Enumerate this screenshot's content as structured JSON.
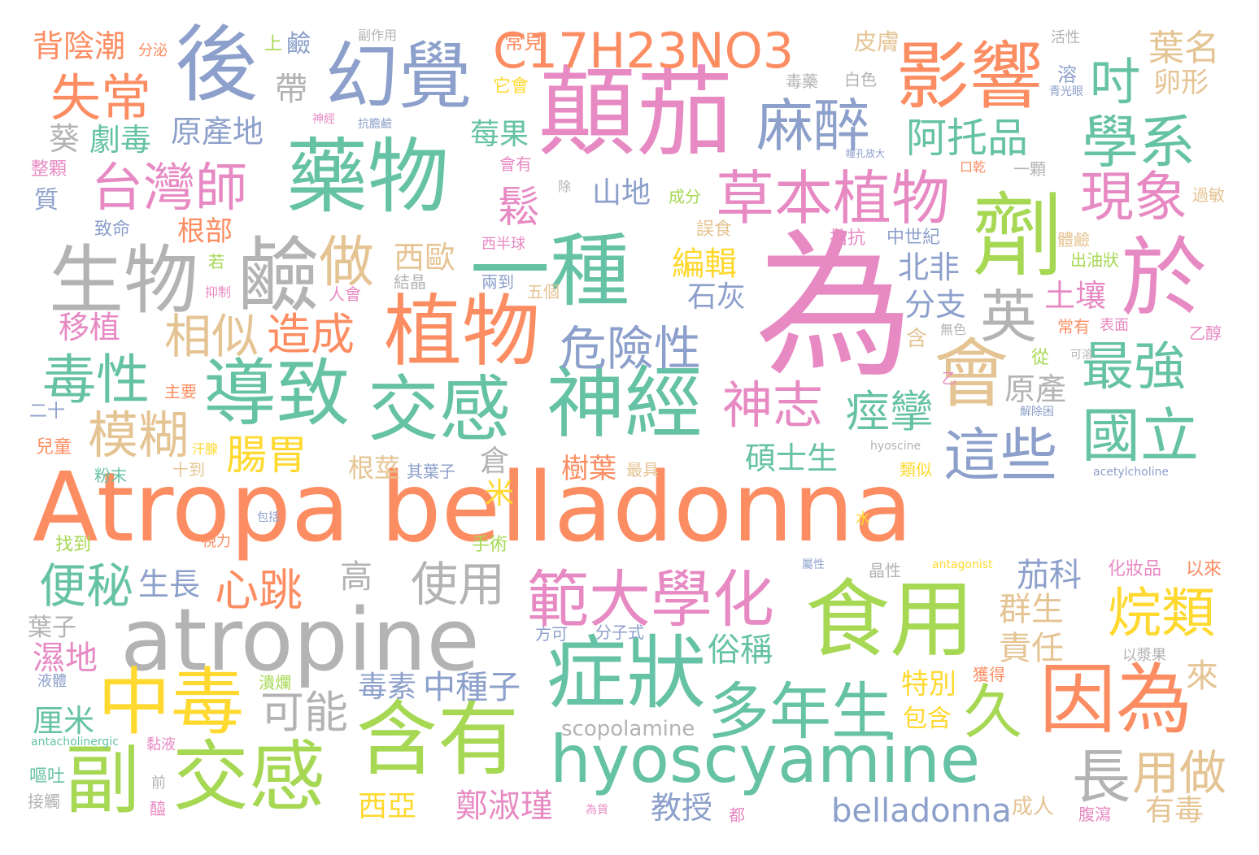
{
  "words": [
    {
      "text": "Atropa belladonna",
      "color": "#fc8d62"
    },
    {
      "text": "為",
      "color": "#e78ac3"
    },
    {
      "text": "atropine",
      "color": "#b3b3b3"
    },
    {
      "text": "顛茄",
      "color": "#e78ac3"
    },
    {
      "text": "藥物",
      "color": "#66c2a5"
    },
    {
      "text": "一種",
      "color": "#66c2a5"
    },
    {
      "text": "植物",
      "color": "#fc8d62"
    },
    {
      "text": "食用",
      "color": "#a6d854"
    },
    {
      "text": "hyoscyamine",
      "color": "#66c2a5"
    },
    {
      "text": "含有",
      "color": "#a6d854"
    },
    {
      "text": "劑",
      "color": "#a6d854"
    },
    {
      "text": "於",
      "color": "#e78ac3"
    },
    {
      "text": "後",
      "color": "#8da0cb"
    },
    {
      "text": "幻覺",
      "color": "#8da0cb"
    },
    {
      "text": "影響",
      "color": "#fc8d62"
    },
    {
      "text": "C17H23NO3",
      "color": "#fc8d62"
    },
    {
      "text": "生物",
      "color": "#b3b3b3"
    },
    {
      "text": "鹼",
      "color": "#b3b3b3"
    },
    {
      "text": "導致",
      "color": "#66c2a5"
    },
    {
      "text": "交感",
      "color": "#66c2a5"
    },
    {
      "text": "神經",
      "color": "#66c2a5"
    },
    {
      "text": "症狀",
      "color": "#66c2a5"
    },
    {
      "text": "中毒",
      "color": "#ffd92f"
    },
    {
      "text": "交感",
      "color": "#a6d854"
    },
    {
      "text": "副",
      "color": "#a6d854"
    },
    {
      "text": "因為",
      "color": "#fc8d62"
    },
    {
      "text": "會",
      "color": "#e5c494"
    },
    {
      "text": "草本植物",
      "color": "#e78ac3"
    },
    {
      "text": "範大學化",
      "color": "#e78ac3"
    },
    {
      "text": "多年生",
      "color": "#66c2a5"
    },
    {
      "text": "台灣師",
      "color": "#e78ac3"
    },
    {
      "text": "失常",
      "color": "#fc8d62"
    },
    {
      "text": "麻醉",
      "color": "#8da0cb"
    },
    {
      "text": "學系",
      "color": "#66c2a5"
    },
    {
      "text": "現象",
      "color": "#e78ac3"
    },
    {
      "text": "國立",
      "color": "#66c2a5"
    },
    {
      "text": "最強",
      "color": "#66c2a5"
    },
    {
      "text": "這些",
      "color": "#8da0cb"
    },
    {
      "text": "毒性",
      "color": "#66c2a5"
    },
    {
      "text": "模糊",
      "color": "#e5c494"
    },
    {
      "text": "危險性",
      "color": "#8da0cb"
    },
    {
      "text": "神志",
      "color": "#e78ac3"
    },
    {
      "text": "烷類",
      "color": "#ffd92f"
    },
    {
      "text": "使用",
      "color": "#b3b3b3"
    },
    {
      "text": "便秘",
      "color": "#66c2a5"
    },
    {
      "text": "心跳",
      "color": "#fc8d62"
    },
    {
      "text": "可能",
      "color": "#b3b3b3"
    },
    {
      "text": "長",
      "color": "#b3b3b3"
    },
    {
      "text": "用做",
      "color": "#e5c494"
    },
    {
      "text": "久",
      "color": "#a6d854"
    },
    {
      "text": "相似",
      "color": "#e5c494"
    },
    {
      "text": "造成",
      "color": "#fc8d62"
    },
    {
      "text": "做",
      "color": "#e5c494"
    },
    {
      "text": "英",
      "color": "#b3b3b3"
    },
    {
      "text": "吋",
      "color": "#66c2a5"
    },
    {
      "text": "阿托品",
      "color": "#66c2a5"
    },
    {
      "text": "痙攣",
      "color": "#66c2a5"
    },
    {
      "text": "腸胃",
      "color": "#ffd92f"
    },
    {
      "text": "鬆",
      "color": "#e78ac3"
    },
    {
      "text": "scopolamine",
      "color": "#b3b3b3"
    },
    {
      "text": "belladonna",
      "color": "#8da0cb"
    },
    {
      "text": "原產地",
      "color": "#8da0cb"
    },
    {
      "text": "劇毒",
      "color": "#66c2a5"
    },
    {
      "text": "莓果",
      "color": "#66c2a5"
    },
    {
      "text": "西歐",
      "color": "#e5c494"
    },
    {
      "text": "編輯",
      "color": "#ffd92f"
    },
    {
      "text": "石灰",
      "color": "#8da0cb"
    },
    {
      "text": "北非",
      "color": "#8da0cb"
    },
    {
      "text": "分支",
      "color": "#8da0cb"
    },
    {
      "text": "土壤",
      "color": "#e78ac3"
    },
    {
      "text": "原產",
      "color": "#b3b3b3"
    },
    {
      "text": "碩士生",
      "color": "#66c2a5"
    },
    {
      "text": "根莖",
      "color": "#e5c494"
    },
    {
      "text": "樹葉",
      "color": "#fc8d62"
    },
    {
      "text": "茄科",
      "color": "#8da0cb"
    },
    {
      "text": "群生",
      "color": "#e5c494"
    },
    {
      "text": "責任",
      "color": "#e5c494"
    },
    {
      "text": "俗稱",
      "color": "#66c2a5"
    },
    {
      "text": "毒素",
      "color": "#8da0cb"
    },
    {
      "text": "中種子",
      "color": "#8da0cb"
    },
    {
      "text": "特別",
      "color": "#ffd92f"
    },
    {
      "text": "鄭淑瑾",
      "color": "#e78ac3"
    },
    {
      "text": "教授",
      "color": "#8da0cb"
    },
    {
      "text": "西亞",
      "color": "#ffd92f"
    },
    {
      "text": "濕地",
      "color": "#e78ac3"
    },
    {
      "text": "厘米",
      "color": "#66c2a5"
    },
    {
      "text": "移植",
      "color": "#e78ac3"
    },
    {
      "text": "山地",
      "color": "#8da0cb"
    },
    {
      "text": "帶",
      "color": "#b3b3b3"
    },
    {
      "text": "葵",
      "color": "#b3b3b3"
    },
    {
      "text": "根部",
      "color": "#fc8d62"
    },
    {
      "text": "背陰潮",
      "color": "#fc8d62"
    },
    {
      "text": "葉名",
      "color": "#e5c494"
    },
    {
      "text": "卵形",
      "color": "#e5c494"
    },
    {
      "text": "生長",
      "color": "#8da0cb"
    },
    {
      "text": "高",
      "color": "#b3b3b3"
    },
    {
      "text": "米",
      "color": "#ffd92f"
    },
    {
      "text": "倉",
      "color": "#b3b3b3"
    },
    {
      "text": "來",
      "color": "#e5c494"
    },
    {
      "text": "包含",
      "color": "#ffd92f"
    },
    {
      "text": "有毒",
      "color": "#e5c494"
    },
    {
      "text": "成人",
      "color": "#e5c494"
    },
    {
      "text": "葉子",
      "color": "#b3b3b3"
    },
    {
      "text": "皮膚",
      "color": "#e5c494"
    },
    {
      "text": "常見",
      "color": "#fc8d62"
    },
    {
      "text": "它會",
      "color": "#ffd92f"
    },
    {
      "text": "上",
      "color": "#a6d854"
    },
    {
      "text": "鹼",
      "color": "#8da0cb"
    },
    {
      "text": "副作用",
      "color": "#b3b3b3"
    },
    {
      "text": "分泌",
      "color": "#fc8d62"
    },
    {
      "text": "活性",
      "color": "#b3b3b3"
    },
    {
      "text": "溶",
      "color": "#8da0cb"
    },
    {
      "text": "青光眼",
      "color": "#8da0cb"
    },
    {
      "text": "毒藥",
      "color": "#b3b3b3"
    },
    {
      "text": "白色",
      "color": "#b3b3b3"
    },
    {
      "text": "神經",
      "color": "#e78ac3"
    },
    {
      "text": "抗膽鹼",
      "color": "#8da0cb"
    },
    {
      "text": "會有",
      "color": "#e78ac3"
    },
    {
      "text": "瞳孔放大",
      "color": "#8da0cb"
    },
    {
      "text": "口乾",
      "color": "#fc8d62"
    },
    {
      "text": "一顆",
      "color": "#b3b3b3"
    },
    {
      "text": "除",
      "color": "#b3b3b3"
    },
    {
      "text": "成分",
      "color": "#a6d854"
    },
    {
      "text": "整顆",
      "color": "#e78ac3"
    },
    {
      "text": "質",
      "color": "#8da0cb"
    },
    {
      "text": "誤食",
      "color": "#e5c494"
    },
    {
      "text": "拮抗",
      "color": "#e78ac3"
    },
    {
      "text": "中世紀",
      "color": "#8da0cb"
    },
    {
      "text": "體鹼",
      "color": "#e5c494"
    },
    {
      "text": "出油狀",
      "color": "#a6d854"
    },
    {
      "text": "過敏",
      "color": "#e5c494"
    },
    {
      "text": "致命",
      "color": "#8da0cb"
    },
    {
      "text": "西半球",
      "color": "#e78ac3"
    },
    {
      "text": "若",
      "color": "#a6d854"
    },
    {
      "text": "抑制",
      "color": "#e78ac3"
    },
    {
      "text": "人會",
      "color": "#e78ac3"
    },
    {
      "text": "結晶",
      "color": "#b3b3b3"
    },
    {
      "text": "兩到",
      "color": "#8da0cb"
    },
    {
      "text": "五個",
      "color": "#e5c494"
    },
    {
      "text": "含",
      "color": "#e5c494"
    },
    {
      "text": "無色",
      "color": "#b3b3b3"
    },
    {
      "text": "常有",
      "color": "#fc8d62"
    },
    {
      "text": "表面",
      "color": "#e78ac3"
    },
    {
      "text": "乙醇",
      "color": "#e78ac3"
    },
    {
      "text": "可溶",
      "color": "#b3b3b3"
    },
    {
      "text": "從",
      "color": "#a6d854"
    },
    {
      "text": "乙",
      "color": "#e78ac3"
    },
    {
      "text": "主要",
      "color": "#fc8d62"
    },
    {
      "text": "二十",
      "color": "#8da0cb"
    },
    {
      "text": "兒童",
      "color": "#fc8d62"
    },
    {
      "text": "粉末",
      "color": "#66c2a5"
    },
    {
      "text": "汗腺",
      "color": "#ffd92f"
    },
    {
      "text": "十到",
      "color": "#e5c494"
    },
    {
      "text": "其葉子",
      "color": "#8da0cb"
    },
    {
      "text": "最具",
      "color": "#e5c494"
    },
    {
      "text": "類似",
      "color": "#ffd92f"
    },
    {
      "text": "hyoscine",
      "color": "#b3b3b3"
    },
    {
      "text": "acetylcholine",
      "color": "#8da0cb"
    },
    {
      "text": "解除困",
      "color": "#8da0cb"
    },
    {
      "text": "找到",
      "color": "#a6d854"
    },
    {
      "text": "包括",
      "color": "#8da0cb"
    },
    {
      "text": "視力",
      "color": "#fc8d62"
    },
    {
      "text": "水",
      "color": "#ffd92f"
    },
    {
      "text": "手術",
      "color": "#a6d854"
    },
    {
      "text": "屬性",
      "color": "#8da0cb"
    },
    {
      "text": "晶性",
      "color": "#b3b3b3"
    },
    {
      "text": "化妝品",
      "color": "#e78ac3"
    },
    {
      "text": "以來",
      "color": "#fc8d62"
    },
    {
      "text": "方可",
      "color": "#8da0cb"
    },
    {
      "text": "分子式",
      "color": "#8da0cb"
    },
    {
      "text": "以漿果",
      "color": "#b3b3b3"
    },
    {
      "text": "潰爛",
      "color": "#a6d854"
    },
    {
      "text": "液體",
      "color": "#8da0cb"
    },
    {
      "text": "獲得",
      "color": "#fc8d62"
    },
    {
      "text": "腹瀉",
      "color": "#e78ac3"
    },
    {
      "text": "黏液",
      "color": "#e78ac3"
    },
    {
      "text": "嘔吐",
      "color": "#66c2a5"
    },
    {
      "text": "接觸",
      "color": "#b3b3b3"
    },
    {
      "text": "前",
      "color": "#b3b3b3"
    },
    {
      "text": "醯",
      "color": "#e78ac3"
    },
    {
      "text": "為貨",
      "color": "#e78ac3"
    },
    {
      "text": "都",
      "color": "#e78ac3"
    },
    {
      "text": "antacholinergic",
      "color": "#66c2a5"
    },
    {
      "text": "antagonist",
      "color": "#ffd92f"
    }
  ]
}
